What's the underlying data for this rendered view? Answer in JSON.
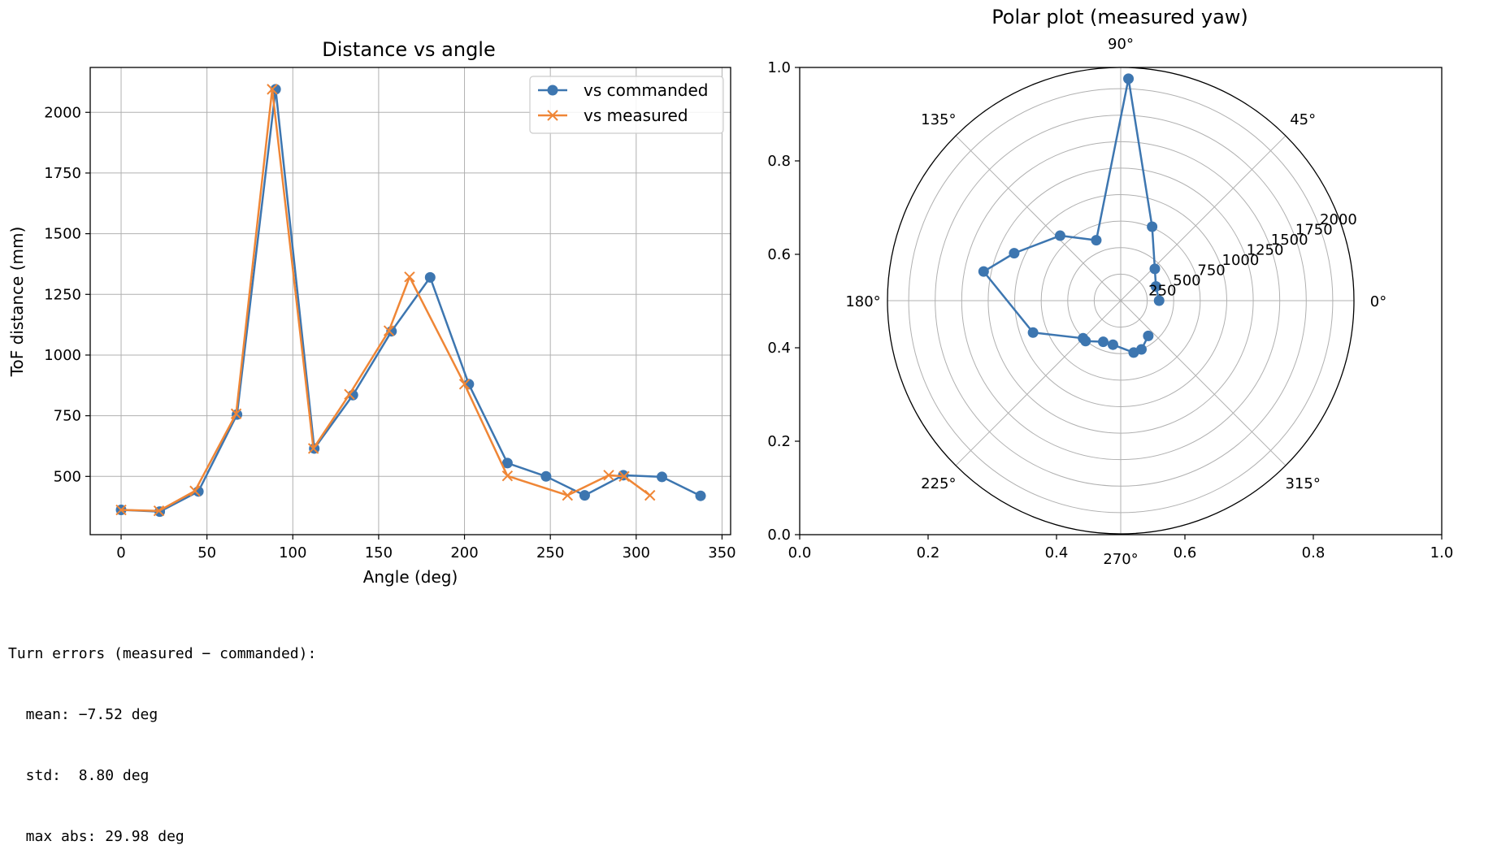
{
  "chart_data": [
    {
      "type": "line",
      "title": "Distance vs angle",
      "xlabel": "Angle (deg)",
      "ylabel": "ToF distance (mm)",
      "xlim": [
        -18,
        355
      ],
      "ylim": [
        260,
        2185
      ],
      "x_ticks": [
        0,
        50,
        100,
        150,
        200,
        250,
        300,
        350
      ],
      "y_ticks": [
        500,
        750,
        1000,
        1250,
        1500,
        1750,
        2000
      ],
      "grid": true,
      "legend": "top-right",
      "series": [
        {
          "name": "vs commanded",
          "color": "#3d76b0",
          "marker": "circle",
          "x": [
            0,
            22.5,
            45,
            67.5,
            90,
            112.5,
            135,
            157.5,
            180,
            202.5,
            225,
            247.5,
            270,
            292.5,
            315,
            337.5
          ],
          "y": [
            362,
            355,
            438,
            755,
            2095,
            615,
            835,
            1098,
            1320,
            880,
            555,
            500,
            422,
            505,
            498,
            420
          ]
        },
        {
          "name": "vs measured",
          "color": "#ef8636",
          "marker": "x",
          "x": [
            0,
            22,
            43,
            67,
            88,
            112,
            133,
            156,
            168,
            200,
            225,
            260,
            284,
            293,
            308
          ],
          "y": [
            362,
            358,
            440,
            758,
            2095,
            615,
            838,
            1100,
            1322,
            880,
            502,
            422,
            505,
            500,
            422
          ]
        }
      ]
    },
    {
      "type": "scatter",
      "title": "Polar plot (measured yaw)",
      "projection": "polar",
      "angle_ticks": [
        "0°",
        "45°",
        "90°",
        "135°",
        "180°",
        "225°",
        "270°",
        "315°"
      ],
      "radial_ticks": [
        250,
        500,
        750,
        1000,
        1250,
        1500,
        1750,
        2000
      ],
      "rmax": 2200,
      "frame_ticks": [
        "0.0",
        "0.2",
        "0.4",
        "0.6",
        "0.8",
        "1.0"
      ],
      "series": [
        {
          "name": "",
          "color": "#3d76b0",
          "marker": "circle",
          "theta": [
            0,
            22,
            43,
            67,
            88,
            112,
            133,
            156,
            168,
            200,
            225,
            229,
            247,
            260,
            284,
            293,
            308
          ],
          "r": [
            362,
            358,
            440,
            758,
            2095,
            615,
            838,
            1100,
            1322,
            880,
            502,
            505,
            422,
            422,
            505,
            500,
            422
          ]
        }
      ]
    }
  ],
  "console": {
    "lines": [
      "Turn errors (measured − commanded):",
      "  mean: −7.52 deg",
      "  std:  8.80 deg",
      "  max abs: 29.98 deg"
    ]
  }
}
